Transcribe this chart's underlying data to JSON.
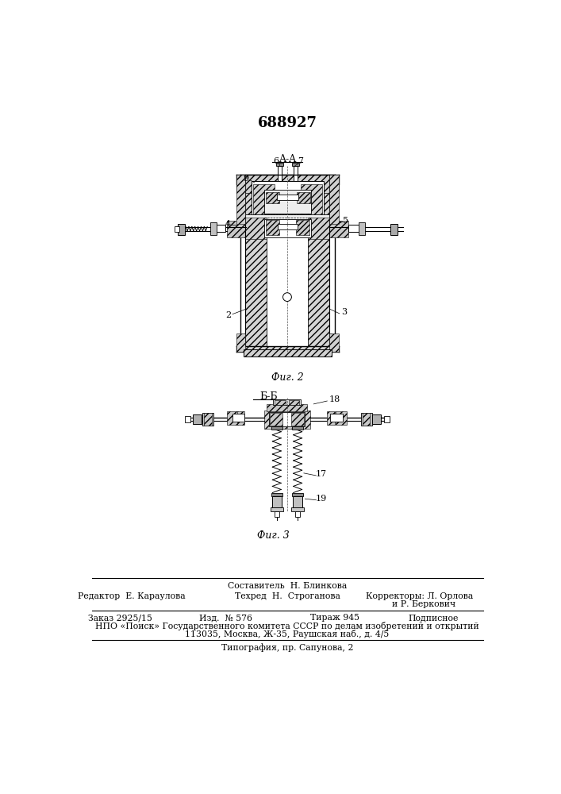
{
  "title_number": "688927",
  "title_fontsize": 13,
  "background_color": "#ffffff",
  "line_color": "#000000",
  "fig2_label": "Фиг. 2",
  "fig3_label": "Фиг. 3",
  "section_aa": "A-A",
  "section_bb": "Б-Б",
  "footer": {
    "sostavitel": "Составитель  Н. Блинкова",
    "redaktor": "Редактор  Е. Караулова",
    "tehred": "Техред  Н.  Строганова",
    "korr1": "Корректоры: Л. Орлова",
    "korr2": "и Р. Беркович",
    "zakaz": "Заказ 2925/15",
    "izd": "Изд.  № 576",
    "tirazh": "Тираж 945",
    "podpisnoe": "Подписное",
    "npo": "НПО «Поиск» Государственного комитета СССР по делам изобретений и открытий",
    "addr": "113035, Москва, Ж-35, Раушская наб., д. 4/5",
    "tipogr": "Типография, пр. Сапунова, 2"
  }
}
